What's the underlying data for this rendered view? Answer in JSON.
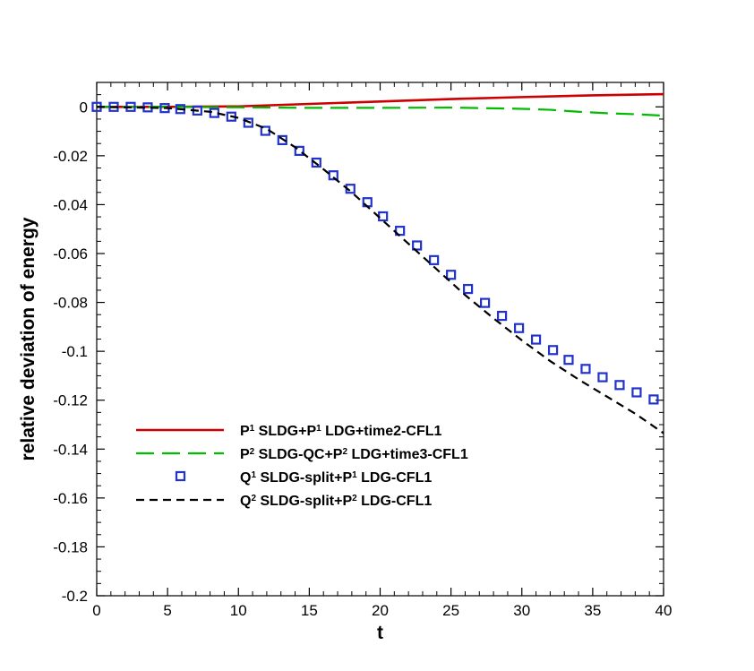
{
  "chart_data": {
    "type": "line",
    "xlabel": "t",
    "ylabel": "relative deviation of energy",
    "xlim": [
      0,
      40
    ],
    "ylim": [
      -0.2,
      0.01
    ],
    "xticks": [
      0,
      5,
      10,
      15,
      20,
      25,
      30,
      35,
      40
    ],
    "xtick_labels": [
      "0",
      "5",
      "10",
      "15",
      "20",
      "25",
      "30",
      "35",
      "40"
    ],
    "yticks": [
      0,
      -0.02,
      -0.04,
      -0.06,
      -0.08,
      -0.1,
      -0.12,
      -0.14,
      -0.16,
      -0.18,
      -0.2
    ],
    "ytick_labels": [
      "0",
      "-0.02",
      "-0.04",
      "-0.06",
      "-0.08",
      "-0.1",
      "-0.12",
      "-0.14",
      "-0.16",
      "-0.18",
      "-0.2"
    ],
    "grid": false,
    "legend_position": "lower-left inside plot",
    "series": [
      {
        "legend_prefix": "P",
        "legend_sup": "1",
        "legend_suffix": " SLDG+P",
        "legend_sup2": "1",
        "legend_tail": " LDG+time2-CFL1",
        "style": "solid",
        "color": "#cc0000",
        "x": [
          0,
          5,
          10,
          15,
          20,
          25,
          30,
          35,
          40
        ],
        "y": [
          0,
          0,
          0.0002,
          0.0012,
          0.0022,
          0.0032,
          0.004,
          0.0047,
          0.0052
        ]
      },
      {
        "legend_prefix": "P",
        "legend_sup": "2",
        "legend_suffix": " SLDG-QC+P",
        "legend_sup2": "2",
        "legend_tail": " LDG+time3-CFL1",
        "style": "dashed",
        "color": "#00bb00",
        "x": [
          0,
          5,
          10,
          15,
          20,
          25,
          30,
          32,
          34,
          36,
          38,
          40
        ],
        "y": [
          0,
          0,
          -0.0002,
          -0.0004,
          -0.0004,
          -0.0003,
          -0.0008,
          -0.0012,
          -0.002,
          -0.0026,
          -0.003,
          -0.0036
        ]
      },
      {
        "legend_prefix": "Q",
        "legend_sup": "1",
        "legend_suffix": " SLDG-split+P",
        "legend_sup2": "1",
        "legend_tail": " LDG-CFL1",
        "style": "markers",
        "color": "#2233cc",
        "x": [
          0,
          1.2,
          2.4,
          3.6,
          4.8,
          5.9,
          7.1,
          8.3,
          9.5,
          10.7,
          11.9,
          13.1,
          14.3,
          15.5,
          16.7,
          17.9,
          19.1,
          20.2,
          21.4,
          22.6,
          23.8,
          25.0,
          26.2,
          27.4,
          28.6,
          29.8,
          31.0,
          32.2,
          33.3,
          34.5,
          35.7,
          36.9,
          38.1,
          39.3
        ],
        "y": [
          0,
          0,
          0,
          -0.0002,
          -0.0005,
          -0.0009,
          -0.0015,
          -0.0025,
          -0.004,
          -0.0065,
          -0.0098,
          -0.0136,
          -0.018,
          -0.0228,
          -0.028,
          -0.0335,
          -0.039,
          -0.0448,
          -0.0507,
          -0.0567,
          -0.0627,
          -0.0687,
          -0.0745,
          -0.0802,
          -0.0855,
          -0.0905,
          -0.0952,
          -0.0995,
          -0.1035,
          -0.1072,
          -0.1106,
          -0.1138,
          -0.1168,
          -0.1197
        ]
      },
      {
        "legend_prefix": "Q",
        "legend_sup": "2",
        "legend_suffix": " SLDG-split+P",
        "legend_sup2": "2",
        "legend_tail": " LDG-CFL1",
        "style": "dashed",
        "color": "#000000",
        "x": [
          0,
          5,
          8,
          10,
          12,
          14,
          16,
          18,
          20,
          22,
          24,
          26,
          28,
          30,
          32,
          34,
          36,
          38,
          40
        ],
        "y": [
          0,
          -0.0005,
          -0.002,
          -0.0045,
          -0.009,
          -0.0165,
          -0.0255,
          -0.035,
          -0.0455,
          -0.056,
          -0.0665,
          -0.077,
          -0.0865,
          -0.0955,
          -0.104,
          -0.1115,
          -0.1185,
          -0.1255,
          -0.1335
        ]
      }
    ]
  }
}
